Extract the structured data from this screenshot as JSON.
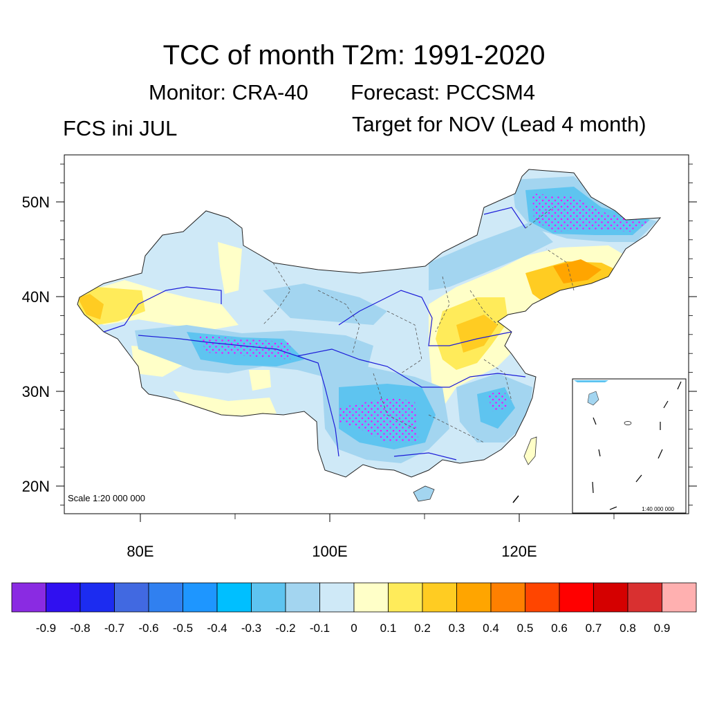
{
  "title": "TCC of month T2m: 1991-2020",
  "subtitle_monitor": "Monitor: CRA-40",
  "subtitle_forecast": "Forecast: PCCSM4",
  "left_string": "FCS ini JUL",
  "right_string": "Target for NOV (Lead 4 month)",
  "scale_main": "Scale 1:20 000 000",
  "scale_inset": "1:40 000 000",
  "map": {
    "lon_range": [
      72,
      138
    ],
    "lat_range": [
      17,
      55
    ],
    "lat_ticks": [
      {
        "value": 20,
        "label": "20N"
      },
      {
        "value": 30,
        "label": "30N"
      },
      {
        "value": 40,
        "label": "40N"
      },
      {
        "value": 50,
        "label": "50N"
      }
    ],
    "lon_ticks": [
      {
        "value": 80,
        "label": "80E"
      },
      {
        "value": 100,
        "label": "100E"
      },
      {
        "value": 120,
        "label": "120E"
      }
    ],
    "stipple_color": "#ff00ff",
    "river_color": "#1c1cd8"
  },
  "colorbar": {
    "colors": [
      "#8a2be2",
      "#3010f0",
      "#1c2cf0",
      "#4169e1",
      "#3080f0",
      "#1e96ff",
      "#00bfff",
      "#5ec4f0",
      "#a3d5f0",
      "#cfe9f7",
      "#ffffc8",
      "#ffeb5a",
      "#ffcc22",
      "#ffa500",
      "#ff8000",
      "#ff4500",
      "#ff0000",
      "#d50000",
      "#d93030",
      "#ffb0b0"
    ],
    "labels": [
      "-0.9",
      "-0.8",
      "-0.7",
      "-0.6",
      "-0.5",
      "-0.4",
      "-0.3",
      "-0.2",
      "-0.1",
      "0",
      "0.1",
      "0.2",
      "0.3",
      "0.4",
      "0.5",
      "0.6",
      "0.7",
      "0.8",
      "0.9"
    ]
  }
}
